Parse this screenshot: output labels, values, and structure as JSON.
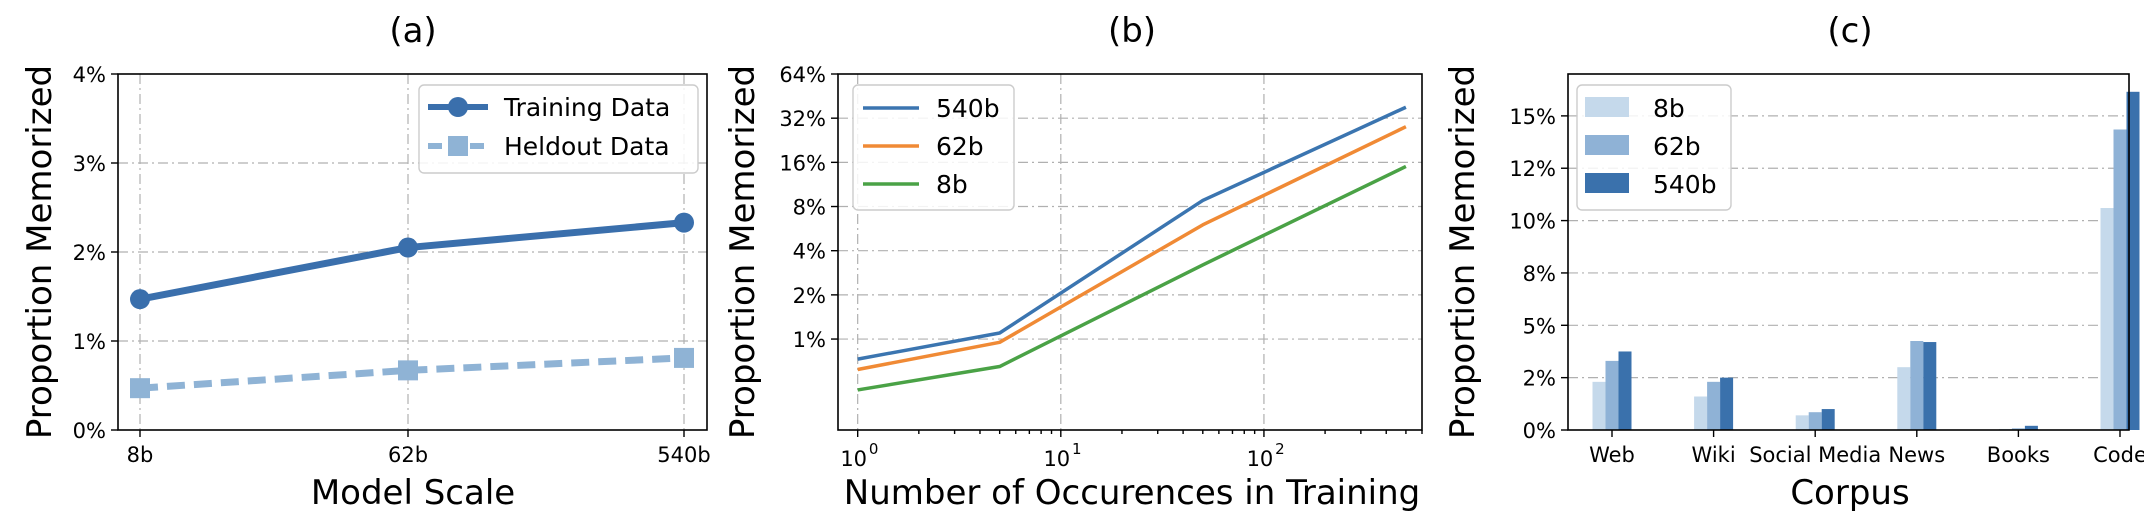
{
  "colors": {
    "training": "#3a6fac",
    "heldout": "#8fb3d5",
    "b540": "#3b75b0",
    "b62": "#f08a35",
    "b8": "#4aa246",
    "bar8": "#c5d9eb",
    "bar62": "#8fb2d6",
    "bar540": "#3a71ac"
  },
  "chart_data": [
    {
      "type": "line",
      "title": "(a)",
      "xlabel": "Model Scale",
      "ylabel": "Proportion Memorized",
      "categories": [
        "8b",
        "62b",
        "540b"
      ],
      "ylim": [
        0,
        0.04
      ],
      "yticks": [
        0,
        0.01,
        0.02,
        0.03,
        0.04
      ],
      "yticklabels": [
        "0%",
        "1%",
        "2%",
        "3%",
        "4%"
      ],
      "grid": true,
      "legend": "top-right",
      "series": [
        {
          "name": "Training Data",
          "values": [
            0.0147,
            0.0205,
            0.0233
          ],
          "style": "solid",
          "marker": "circle"
        },
        {
          "name": "Heldout Data",
          "values": [
            0.0047,
            0.0067,
            0.0081
          ],
          "style": "dashed",
          "marker": "square"
        }
      ]
    },
    {
      "type": "line",
      "title": "(b)",
      "xlabel": "Number of Occurences in Training",
      "ylabel": "Proportion Memorized",
      "xscale": "log",
      "yscale": "log",
      "xlim": [
        0.8,
        600
      ],
      "ylim": [
        0.0024,
        0.64
      ],
      "xticks": [
        1,
        10,
        100
      ],
      "xticklabels": [
        "10",
        "10",
        "10"
      ],
      "xtickexponents": [
        "0",
        "1",
        "2"
      ],
      "yticks": [
        0.01,
        0.02,
        0.04,
        0.08,
        0.16,
        0.32,
        0.64
      ],
      "yticklabels": [
        "1%",
        "2%",
        "4%",
        "8%",
        "16%",
        "32%",
        "64%"
      ],
      "grid": true,
      "legend": "top-left",
      "series": [
        {
          "name": "540b",
          "x": [
            1,
            5,
            50,
            500
          ],
          "values": [
            0.0073,
            0.011,
            0.088,
            0.38
          ]
        },
        {
          "name": "62b",
          "x": [
            1,
            5,
            50,
            500
          ],
          "values": [
            0.0062,
            0.0095,
            0.06,
            0.28
          ]
        },
        {
          "name": "8b",
          "x": [
            1,
            5,
            50,
            500
          ],
          "values": [
            0.0045,
            0.0065,
            0.032,
            0.15
          ]
        }
      ]
    },
    {
      "type": "bar",
      "title": "(c)",
      "xlabel": "Corpus",
      "ylabel": "Proportion Memorized",
      "categories": [
        "Web",
        "Wiki",
        "Social Media",
        "News",
        "Books",
        "Code"
      ],
      "ylim": [
        0,
        0.17
      ],
      "yticks": [
        0,
        0.025,
        0.05,
        0.075,
        0.1,
        0.125,
        0.15
      ],
      "yticklabels": [
        "0%",
        "2%",
        "5%",
        "8%",
        "10%",
        "12%",
        "15%"
      ],
      "grid": true,
      "legend": "top-left",
      "series": [
        {
          "name": "8b",
          "values": [
            0.023,
            0.016,
            0.007,
            0.03,
            0.0005,
            0.106
          ]
        },
        {
          "name": "62b",
          "values": [
            0.033,
            0.023,
            0.0085,
            0.0425,
            0.0008,
            0.1435
          ]
        },
        {
          "name": "540b",
          "values": [
            0.0375,
            0.025,
            0.01,
            0.042,
            0.002,
            0.1615
          ]
        }
      ]
    }
  ]
}
